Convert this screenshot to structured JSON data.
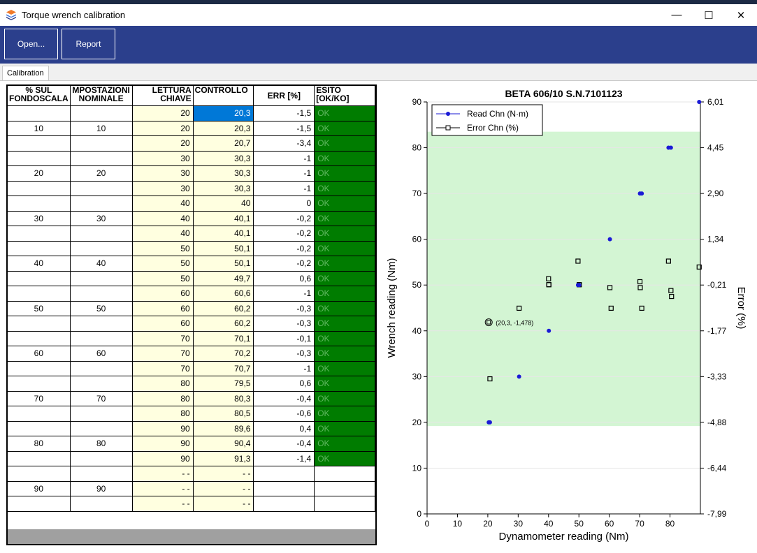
{
  "window": {
    "title": "Torque wrench calibration",
    "minimize": "—",
    "maximize": "☐",
    "close": "✕",
    "icon": "app-stack-icon"
  },
  "toolbar": {
    "open_label": "Open...",
    "report_label": "Report"
  },
  "tabs": [
    {
      "label": "Calibration"
    }
  ],
  "table": {
    "headers": [
      [
        "% SUL",
        "FONDOSCALA"
      ],
      [
        "MPOSTAZIONI",
        "NOMINALE"
      ],
      [
        "LETTURA",
        "CHIAVE"
      ],
      [
        "CONTROLLO",
        ""
      ],
      [
        "ERR [%]",
        ""
      ],
      [
        "ESITO",
        "[OK/KO]"
      ]
    ],
    "rows": [
      [
        "",
        "",
        "20",
        "20,3",
        "-1,5",
        "OK"
      ],
      [
        "10",
        "10",
        "20",
        "20,3",
        "-1,5",
        "OK"
      ],
      [
        "",
        "",
        "20",
        "20,7",
        "-3,4",
        "OK"
      ],
      [
        "",
        "",
        "30",
        "30,3",
        "-1",
        "OK"
      ],
      [
        "20",
        "20",
        "30",
        "30,3",
        "-1",
        "OK"
      ],
      [
        "",
        "",
        "30",
        "30,3",
        "-1",
        "OK"
      ],
      [
        "",
        "",
        "40",
        "40",
        "0",
        "OK"
      ],
      [
        "30",
        "30",
        "40",
        "40,1",
        "-0,2",
        "OK"
      ],
      [
        "",
        "",
        "40",
        "40,1",
        "-0,2",
        "OK"
      ],
      [
        "",
        "",
        "50",
        "50,1",
        "-0,2",
        "OK"
      ],
      [
        "40",
        "40",
        "50",
        "50,1",
        "-0,2",
        "OK"
      ],
      [
        "",
        "",
        "50",
        "49,7",
        "0,6",
        "OK"
      ],
      [
        "",
        "",
        "60",
        "60,6",
        "-1",
        "OK"
      ],
      [
        "50",
        "50",
        "60",
        "60,2",
        "-0,3",
        "OK"
      ],
      [
        "",
        "",
        "60",
        "60,2",
        "-0,3",
        "OK"
      ],
      [
        "",
        "",
        "70",
        "70,1",
        "-0,1",
        "OK"
      ],
      [
        "60",
        "60",
        "70",
        "70,2",
        "-0,3",
        "OK"
      ],
      [
        "",
        "",
        "70",
        "70,7",
        "-1",
        "OK"
      ],
      [
        "",
        "",
        "80",
        "79,5",
        "0,6",
        "OK"
      ],
      [
        "70",
        "70",
        "80",
        "80,3",
        "-0,4",
        "OK"
      ],
      [
        "",
        "",
        "80",
        "80,5",
        "-0,6",
        "OK"
      ],
      [
        "",
        "",
        "90",
        "89,6",
        "0,4",
        "OK"
      ],
      [
        "80",
        "80",
        "90",
        "90,4",
        "-0,4",
        "OK"
      ],
      [
        "",
        "",
        "90",
        "91,3",
        "-1,4",
        "OK"
      ],
      [
        "",
        "",
        "- -",
        "- -",
        "",
        ""
      ],
      [
        "90",
        "90",
        "- -",
        "- -",
        "",
        ""
      ],
      [
        "",
        "",
        "- -",
        "- -",
        "",
        ""
      ]
    ],
    "selected": {
      "row": 0,
      "col": 3
    }
  },
  "colors": {
    "ok_green": "#007c00",
    "read_series": "#1a1ad6",
    "error_series": "#000000",
    "band": "#d3f5d3",
    "toolbar": "#2b3f8c"
  },
  "chart_data": {
    "type": "scatter",
    "title": "BETA 606/10 S.N.7101123",
    "xlabel": "Dynamometer reading (Nm)",
    "ylabel": "Wrench reading (Nm)",
    "y2label": "Error (%)",
    "xlim": [
      0,
      90
    ],
    "ylim": [
      0,
      90
    ],
    "y2lim": [
      -7.99,
      6.01
    ],
    "x_ticks": [
      0,
      10,
      20,
      30,
      40,
      50,
      60,
      70,
      80
    ],
    "y_ticks": [
      0,
      10,
      20,
      30,
      40,
      50,
      60,
      70,
      80,
      90
    ],
    "y2_tick_labels": [
      "-7,99",
      "-6,44",
      "-4,88",
      "-3,33",
      "-1,77",
      "-0,21",
      "1,34",
      "2,90",
      "4,45",
      "6,01"
    ],
    "band": {
      "y_from": 19.2,
      "y_to": 83.5
    },
    "legend": {
      "position": "top-left"
    },
    "series": [
      {
        "name": "Read Chn (N·m)",
        "marker": "filled-circle",
        "x": [
          20.3,
          20.7,
          30.3,
          40.1,
          49.7,
          50.1,
          60.2,
          70.1,
          70.7,
          79.5,
          80.3,
          89.6
        ],
        "y": [
          20,
          20,
          30,
          40,
          50,
          50,
          60,
          70,
          70,
          80,
          80,
          90
        ]
      },
      {
        "name": "Error Chn (%)",
        "marker": "open-square",
        "x": [
          20.7,
          30.3,
          40,
          40.1,
          40.1,
          49.7,
          50.1,
          50.1,
          60.2,
          60.6,
          70.1,
          70.2,
          70.7,
          79.5,
          80.3,
          80.5,
          89.6
        ],
        "y": [
          -3.4,
          -1,
          0,
          -0.2,
          -0.2,
          0.6,
          -0.2,
          -0.2,
          -0.3,
          -1,
          -0.1,
          -0.3,
          -1,
          0.6,
          -0.4,
          -0.6,
          0.4
        ]
      }
    ],
    "annotation": {
      "x": 20.3,
      "y2": -1.478,
      "text": "(20,3, -1,478)"
    }
  }
}
